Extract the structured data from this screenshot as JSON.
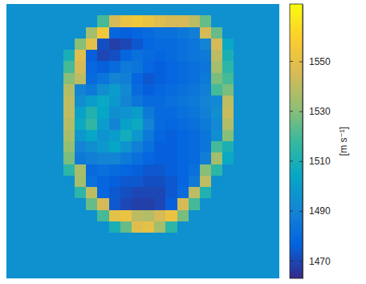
{
  "chart_data": {
    "type": "heatmap",
    "tick_labels": false,
    "values": [
      [
        1495,
        1495,
        1495,
        1495,
        1495,
        1495,
        1495,
        1495,
        1495,
        1495,
        1495,
        1495,
        1495,
        1495,
        1495,
        1495,
        1495,
        1495,
        1495,
        1495,
        1495,
        1495,
        1495,
        1495
      ],
      [
        1495,
        1495,
        1495,
        1495,
        1495,
        1495,
        1495,
        1495,
        1520,
        1545,
        1552,
        1555,
        1552,
        1548,
        1545,
        1545,
        1540,
        1525,
        1495,
        1495,
        1495,
        1495,
        1495,
        1495
      ],
      [
        1495,
        1495,
        1495,
        1495,
        1495,
        1495,
        1495,
        1535,
        1555,
        1478,
        1476,
        1478,
        1480,
        1482,
        1482,
        1485,
        1488,
        1545,
        1525,
        1495,
        1495,
        1495,
        1495,
        1495
      ],
      [
        1495,
        1495,
        1495,
        1495,
        1495,
        1495,
        1530,
        1550,
        1472,
        1468,
        1470,
        1474,
        1478,
        1480,
        1480,
        1482,
        1484,
        1490,
        1545,
        1505,
        1495,
        1495,
        1495,
        1495
      ],
      [
        1495,
        1495,
        1495,
        1495,
        1495,
        1510,
        1548,
        1476,
        1470,
        1472,
        1478,
        1482,
        1480,
        1478,
        1480,
        1482,
        1484,
        1486,
        1540,
        1510,
        1495,
        1495,
        1495,
        1495
      ],
      [
        1495,
        1495,
        1495,
        1495,
        1495,
        1520,
        1545,
        1478,
        1476,
        1480,
        1486,
        1484,
        1478,
        1476,
        1478,
        1480,
        1482,
        1484,
        1535,
        1515,
        1495,
        1495,
        1495,
        1495
      ],
      [
        1495,
        1495,
        1495,
        1495,
        1495,
        1530,
        1540,
        1480,
        1484,
        1490,
        1488,
        1478,
        1474,
        1476,
        1478,
        1480,
        1482,
        1486,
        1528,
        1520,
        1495,
        1495,
        1495,
        1495
      ],
      [
        1495,
        1495,
        1495,
        1495,
        1495,
        1538,
        1490,
        1486,
        1494,
        1500,
        1492,
        1480,
        1476,
        1478,
        1480,
        1482,
        1484,
        1488,
        1520,
        1528,
        1495,
        1495,
        1495,
        1495
      ],
      [
        1495,
        1495,
        1495,
        1495,
        1495,
        1540,
        1494,
        1500,
        1505,
        1498,
        1490,
        1484,
        1480,
        1480,
        1482,
        1484,
        1486,
        1490,
        1492,
        1540,
        1495,
        1495,
        1495,
        1495
      ],
      [
        1495,
        1495,
        1495,
        1495,
        1495,
        1540,
        1502,
        1512,
        1504,
        1494,
        1496,
        1500,
        1486,
        1480,
        1480,
        1482,
        1484,
        1488,
        1494,
        1542,
        1495,
        1495,
        1495,
        1495
      ],
      [
        1495,
        1495,
        1495,
        1495,
        1495,
        1538,
        1506,
        1516,
        1500,
        1490,
        1502,
        1506,
        1490,
        1480,
        1478,
        1480,
        1482,
        1486,
        1492,
        1538,
        1495,
        1495,
        1495,
        1495
      ],
      [
        1495,
        1495,
        1495,
        1495,
        1495,
        1536,
        1498,
        1504,
        1496,
        1500,
        1508,
        1498,
        1486,
        1478,
        1476,
        1478,
        1480,
        1484,
        1494,
        1530,
        1495,
        1495,
        1495,
        1495
      ],
      [
        1495,
        1495,
        1495,
        1495,
        1495,
        1532,
        1490,
        1494,
        1498,
        1504,
        1496,
        1488,
        1482,
        1476,
        1476,
        1478,
        1480,
        1484,
        1520,
        1510,
        1495,
        1495,
        1495,
        1495
      ],
      [
        1495,
        1495,
        1495,
        1495,
        1495,
        1528,
        1486,
        1488,
        1490,
        1490,
        1486,
        1482,
        1478,
        1476,
        1476,
        1478,
        1480,
        1488,
        1535,
        1505,
        1495,
        1495,
        1495,
        1495
      ],
      [
        1495,
        1495,
        1495,
        1495,
        1495,
        1515,
        1536,
        1480,
        1482,
        1480,
        1478,
        1476,
        1474,
        1474,
        1476,
        1478,
        1482,
        1530,
        1515,
        1495,
        1495,
        1495,
        1495,
        1495
      ],
      [
        1495,
        1495,
        1495,
        1495,
        1495,
        1495,
        1535,
        1482,
        1478,
        1476,
        1474,
        1474,
        1472,
        1472,
        1474,
        1478,
        1486,
        1540,
        1495,
        1495,
        1495,
        1495,
        1495,
        1495
      ],
      [
        1495,
        1495,
        1495,
        1495,
        1495,
        1495,
        1515,
        1540,
        1478,
        1474,
        1472,
        1470,
        1470,
        1470,
        1474,
        1480,
        1540,
        1512,
        1495,
        1495,
        1495,
        1495,
        1495,
        1495
      ],
      [
        1495,
        1495,
        1495,
        1495,
        1495,
        1495,
        1495,
        1525,
        1545,
        1474,
        1470,
        1468,
        1468,
        1470,
        1476,
        1545,
        1520,
        1495,
        1495,
        1495,
        1495,
        1495,
        1495,
        1495
      ],
      [
        1495,
        1495,
        1495,
        1495,
        1495,
        1495,
        1495,
        1495,
        1520,
        1550,
        1552,
        1540,
        1538,
        1545,
        1552,
        1528,
        1495,
        1495,
        1495,
        1495,
        1495,
        1495,
        1495,
        1495
      ],
      [
        1495,
        1495,
        1495,
        1495,
        1495,
        1495,
        1495,
        1495,
        1495,
        1510,
        1525,
        1548,
        1550,
        1535,
        1515,
        1495,
        1495,
        1495,
        1495,
        1495,
        1495,
        1495,
        1495,
        1495
      ],
      [
        1495,
        1495,
        1495,
        1495,
        1495,
        1495,
        1495,
        1495,
        1495,
        1495,
        1495,
        1495,
        1495,
        1495,
        1495,
        1495,
        1495,
        1495,
        1495,
        1495,
        1495,
        1495,
        1495,
        1495
      ],
      [
        1495,
        1495,
        1495,
        1495,
        1495,
        1495,
        1495,
        1495,
        1495,
        1495,
        1495,
        1495,
        1495,
        1495,
        1495,
        1495,
        1495,
        1495,
        1495,
        1495,
        1495,
        1495,
        1495,
        1495
      ],
      [
        1495,
        1495,
        1495,
        1495,
        1495,
        1495,
        1495,
        1495,
        1495,
        1495,
        1495,
        1495,
        1495,
        1495,
        1495,
        1495,
        1495,
        1495,
        1495,
        1495,
        1495,
        1495,
        1495,
        1495
      ],
      [
        1495,
        1495,
        1495,
        1495,
        1495,
        1495,
        1495,
        1495,
        1495,
        1495,
        1495,
        1495,
        1495,
        1495,
        1495,
        1495,
        1495,
        1495,
        1495,
        1495,
        1495,
        1495,
        1495,
        1495
      ]
    ],
    "colorbar_range": [
      1463,
      1573
    ],
    "colorbar_ticks": [
      1470,
      1490,
      1510,
      1530,
      1550
    ],
    "colorbar_label": "[m s⁻¹]"
  }
}
